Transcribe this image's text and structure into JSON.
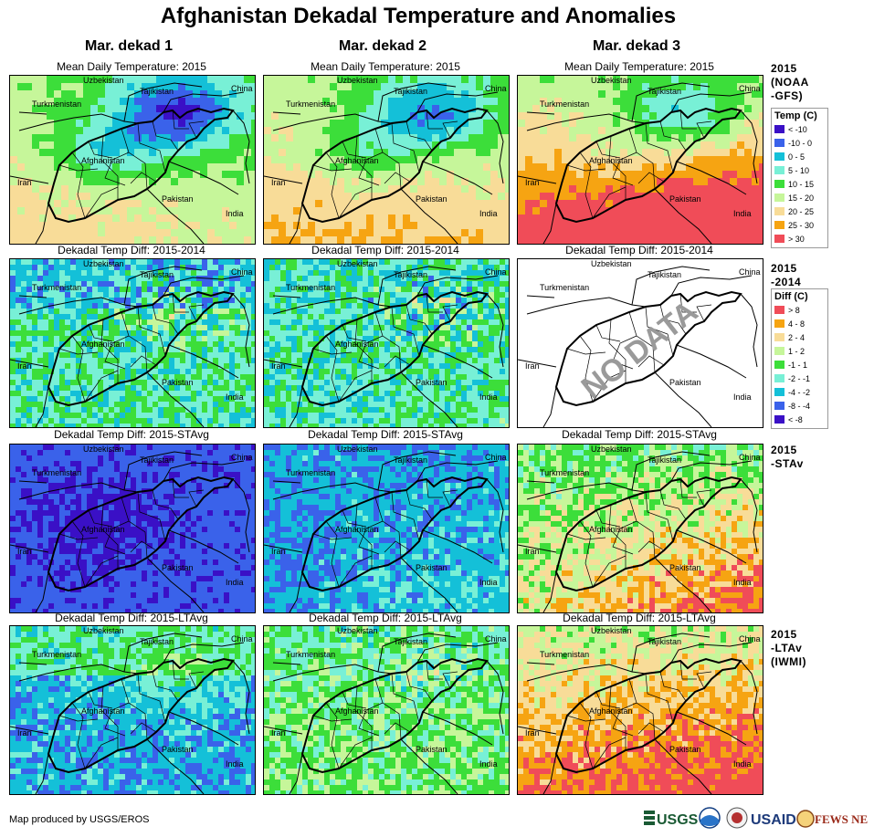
{
  "title": "Afghanistan Dekadal Temperature and Anomalies",
  "columns": [
    "Mar. dekad 1",
    "Mar. dekad 2",
    "Mar. dekad 3"
  ],
  "rows": [
    {
      "panel_title": "Mean Daily Temperature: 2015",
      "label": "2015\n(NOAA\n-GFS)"
    },
    {
      "panel_title": "Dekadal Temp Diff: 2015-2014",
      "label": "2015\n-2014"
    },
    {
      "panel_title": "Dekadal Temp Diff: 2015-STAvg",
      "label": "2015\n-STAv"
    },
    {
      "panel_title": "Dekadal Temp Diff: 2015-LTAvg",
      "label": "2015\n-LTAv\n(IWMI)"
    }
  ],
  "place_labels": {
    "uzbekistan": "Uzbekistan",
    "tajikistan": "Tajikistan",
    "china": "China",
    "turkmenistan": "Turkmenistan",
    "afghanistan": "Afghanistan",
    "iran": "Iran",
    "pakistan": "Pakistan",
    "india": "India"
  },
  "no_data_text": "NO DATA",
  "legends": {
    "temperature": {
      "title": "Temp (C)",
      "items": [
        {
          "label": "< -10",
          "color": "#3a10c6"
        },
        {
          "label": "-10 - 0",
          "color": "#3a62ea"
        },
        {
          "label": "0 - 5",
          "color": "#14c0d8"
        },
        {
          "label": "5 - 10",
          "color": "#78f0d6"
        },
        {
          "label": "10 - 15",
          "color": "#3cde3a"
        },
        {
          "label": "15 - 20",
          "color": "#c6f69a"
        },
        {
          "label": "20 - 25",
          "color": "#f8dc98"
        },
        {
          "label": "25 - 30",
          "color": "#f6a412"
        },
        {
          "label": "> 30",
          "color": "#f04c58"
        }
      ]
    },
    "difference": {
      "title": "Diff (C)",
      "items": [
        {
          "label": "> 8",
          "color": "#f04c58"
        },
        {
          "label": "4 - 8",
          "color": "#f6a412"
        },
        {
          "label": "2 - 4",
          "color": "#f8dc98"
        },
        {
          "label": "1 - 2",
          "color": "#c6f69a"
        },
        {
          "label": "-1 - 1",
          "color": "#3cde3a"
        },
        {
          "label": "-2 - -1",
          "color": "#78f0d6"
        },
        {
          "label": "-4 - -2",
          "color": "#14c0d8"
        },
        {
          "label": "-8 - -4",
          "color": "#3a62ea"
        },
        {
          "label": "< -8",
          "color": "#3a10c6"
        }
      ]
    }
  },
  "footer": "Map produced by USGS/EROS",
  "logos": {
    "usgs": "USGS",
    "usaid": "USAID",
    "fewsnet": "FEWS NET"
  }
}
